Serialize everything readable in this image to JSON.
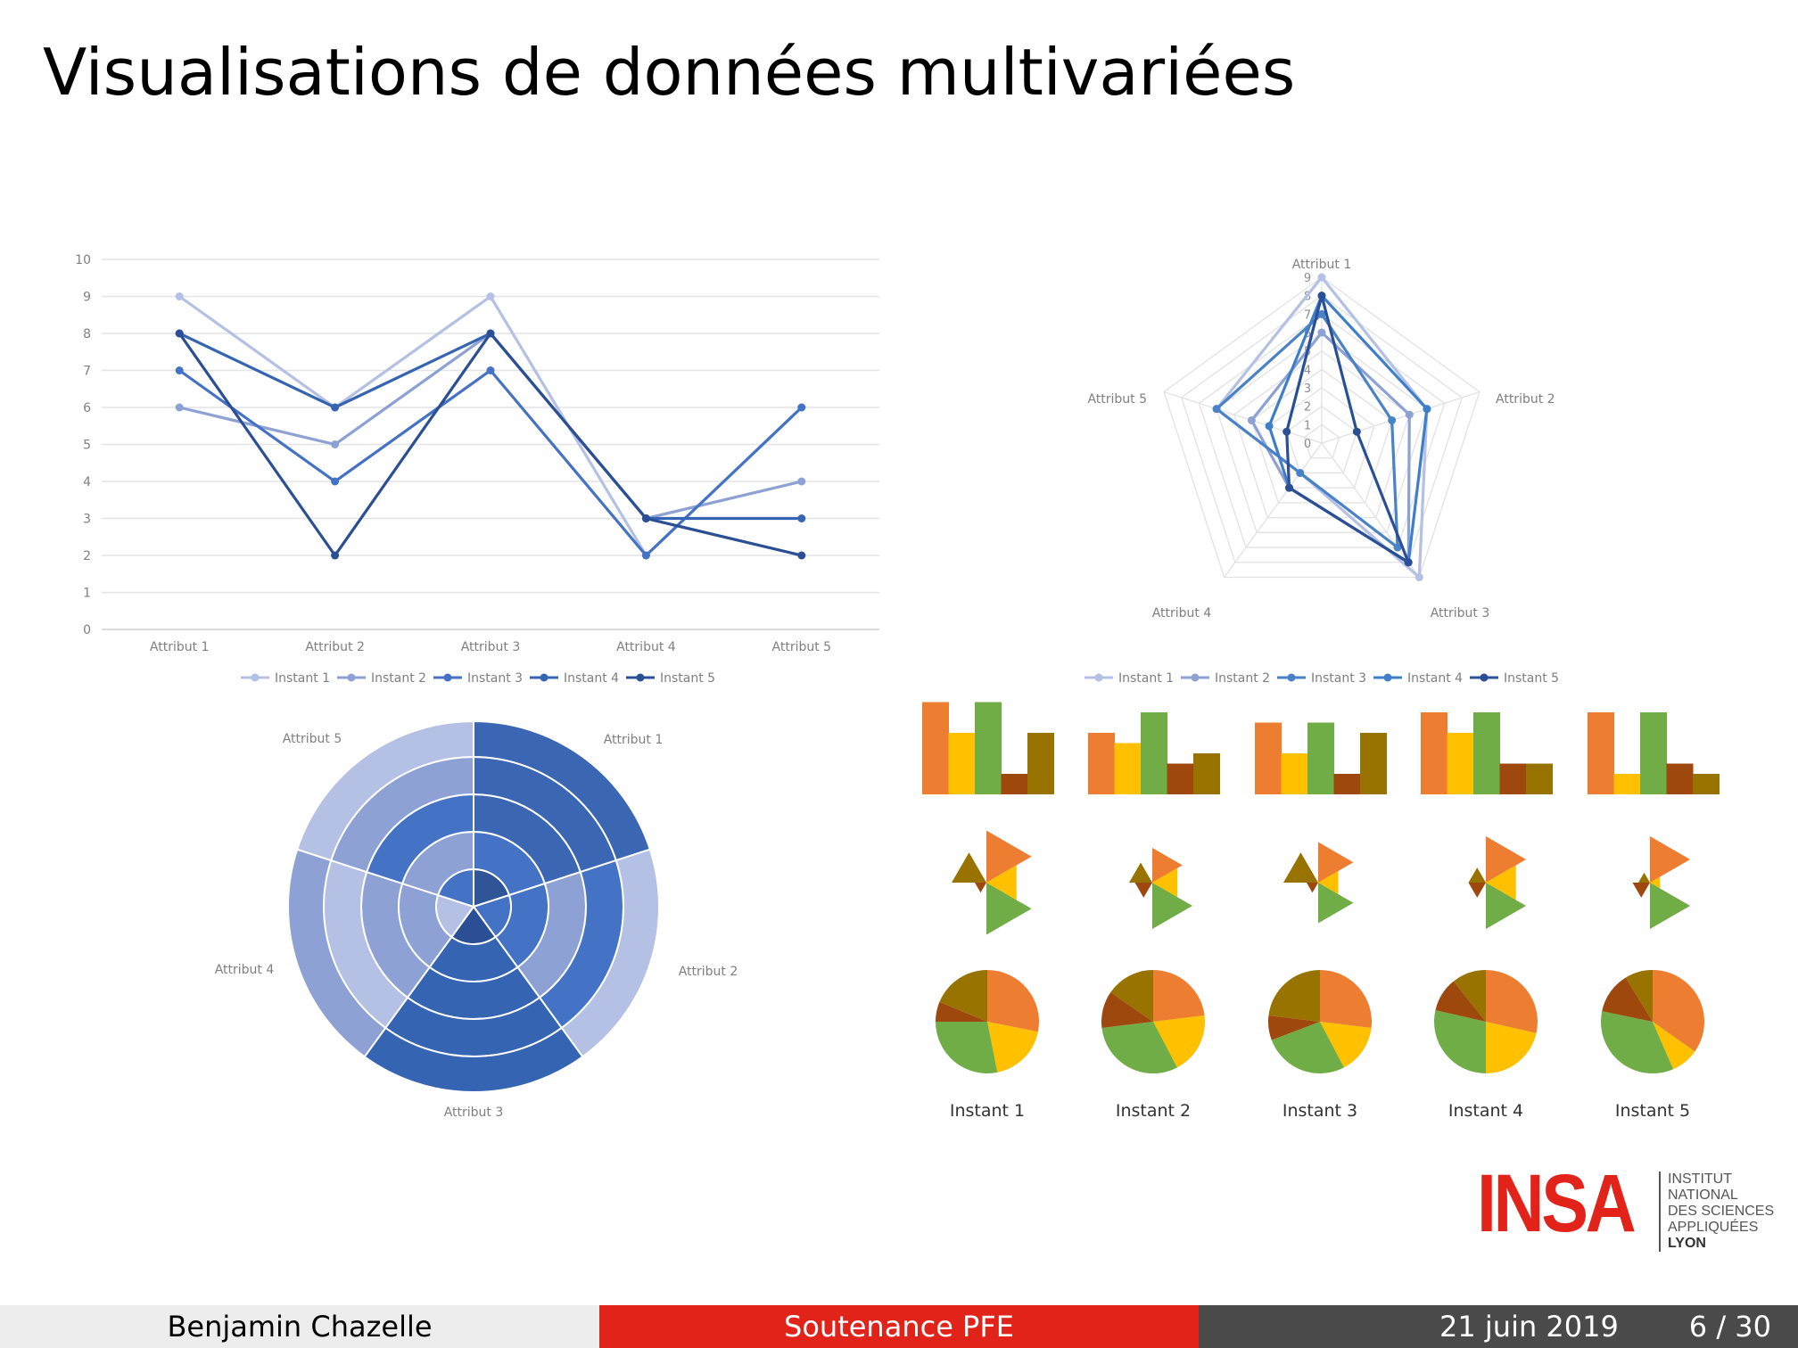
{
  "slide": {
    "title": "Visualisations de données multivariées"
  },
  "attributes": [
    "Attribut 1",
    "Attribut 2",
    "Attribut 3",
    "Attribut 4",
    "Attribut 5"
  ],
  "instants": [
    "Instant 1",
    "Instant 2",
    "Instant 3",
    "Instant 4",
    "Instant 5"
  ],
  "colors": {
    "blues": [
      "#b4c0e4",
      "#8ea1d5",
      "#4472c4",
      "#3564b3",
      "#2b4f94"
    ],
    "cat": [
      "#ed7d31",
      "#ffc000",
      "#70ad47",
      "#9e480e",
      "#997300"
    ]
  },
  "chart_data": [
    {
      "type": "line",
      "categories": [
        "Attribut 1",
        "Attribut 2",
        "Attribut 3",
        "Attribut 4",
        "Attribut 5"
      ],
      "ylim": [
        0,
        10
      ],
      "yticks": [
        "0",
        "1",
        "2",
        "3",
        "4",
        "5",
        "6",
        "7",
        "8",
        "9",
        "10"
      ],
      "grid": true,
      "legend": "bottom",
      "series": [
        {
          "name": "Instant 1",
          "values": [
            9,
            6,
            9,
            2,
            6
          ]
        },
        {
          "name": "Instant 2",
          "values": [
            6,
            5,
            8,
            3,
            4
          ]
        },
        {
          "name": "Instant 3",
          "values": [
            7,
            4,
            7,
            2,
            6
          ]
        },
        {
          "name": "Instant 4",
          "values": [
            8,
            6,
            8,
            3,
            3
          ]
        },
        {
          "name": "Instant 5",
          "values": [
            8,
            2,
            8,
            3,
            2
          ]
        }
      ]
    },
    {
      "type": "radar",
      "categories": [
        "Attribut 1",
        "Attribut 2",
        "Attribut 3",
        "Attribut 4",
        "Attribut 5"
      ],
      "rlim": [
        0,
        9
      ],
      "rticks": [
        "0",
        "1",
        "2",
        "3",
        "4",
        "5",
        "6",
        "7",
        "8",
        "9"
      ],
      "legend": "bottom",
      "series": [
        {
          "name": "Instant 1",
          "values": [
            9,
            6,
            9,
            2,
            6
          ]
        },
        {
          "name": "Instant 2",
          "values": [
            6,
            5,
            8,
            3,
            4
          ]
        },
        {
          "name": "Instant 3",
          "values": [
            7,
            4,
            7,
            2,
            6
          ]
        },
        {
          "name": "Instant 4",
          "values": [
            8,
            6,
            8,
            3,
            3
          ]
        },
        {
          "name": "Instant 5",
          "values": [
            8,
            2,
            8,
            3,
            2
          ]
        }
      ]
    },
    {
      "type": "polar-area",
      "categories": [
        "Attribut 1",
        "Attribut 2",
        "Attribut 3",
        "Attribut 4",
        "Attribut 5"
      ],
      "rings": 5,
      "outer_ring_index_by_attribute": [
        4,
        4,
        4,
        4,
        4
      ]
    },
    {
      "type": "bar",
      "small_multiples": [
        "Instant 1",
        "Instant 2",
        "Instant 3",
        "Instant 4",
        "Instant 5"
      ],
      "values": [
        [
          9,
          6,
          9,
          2,
          6
        ],
        [
          6,
          5,
          8,
          3,
          4
        ],
        [
          7,
          4,
          7,
          2,
          6
        ],
        [
          8,
          6,
          8,
          3,
          3
        ],
        [
          8,
          2,
          8,
          3,
          2
        ]
      ]
    },
    {
      "type": "pie",
      "small_multiples": [
        "Instant 1",
        "Instant 2",
        "Instant 3",
        "Instant 4",
        "Instant 5"
      ],
      "values": [
        [
          9,
          6,
          9,
          2,
          6
        ],
        [
          6,
          5,
          8,
          3,
          4
        ],
        [
          7,
          4,
          7,
          2,
          6
        ],
        [
          8,
          6,
          8,
          3,
          3
        ],
        [
          8,
          2,
          8,
          3,
          2
        ]
      ]
    }
  ],
  "footer": {
    "author": "Benjamin Chazelle",
    "event": "Soutenance PFE",
    "date": "21 juin 2019",
    "page": "6 / 30"
  },
  "logo": {
    "mark": "INSA",
    "lines": [
      "INSTITUT NATIONAL",
      "DES SCIENCES",
      "APPLIQUÉES",
      "LYON"
    ]
  }
}
